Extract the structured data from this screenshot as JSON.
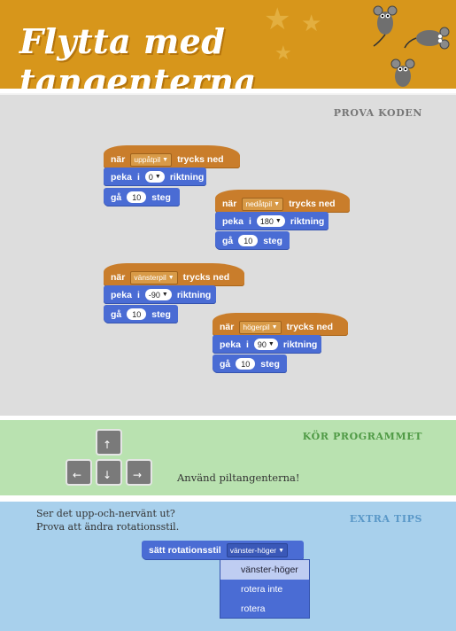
{
  "header": {
    "title": "Flytta med tangenterna"
  },
  "code_section": {
    "label": "PROVA KODEN",
    "scripts": [
      {
        "hat": {
          "when": "när",
          "key": "uppåtpil",
          "trigger": "trycks ned"
        },
        "point": {
          "label": "peka",
          "in": "i",
          "value": "0",
          "dir": "riktning"
        },
        "move": {
          "label": "gå",
          "value": "10",
          "unit": "steg"
        }
      },
      {
        "hat": {
          "when": "när",
          "key": "nedåtpil",
          "trigger": "trycks ned"
        },
        "point": {
          "label": "peka",
          "in": "i",
          "value": "180",
          "dir": "riktning"
        },
        "move": {
          "label": "gå",
          "value": "10",
          "unit": "steg"
        }
      },
      {
        "hat": {
          "when": "när",
          "key": "vänsterpil",
          "trigger": "trycks ned"
        },
        "point": {
          "label": "peka",
          "in": "i",
          "value": "-90",
          "dir": "riktning"
        },
        "move": {
          "label": "gå",
          "value": "10",
          "unit": "steg"
        }
      },
      {
        "hat": {
          "when": "när",
          "key": "högerpil",
          "trigger": "trycks ned"
        },
        "point": {
          "label": "peka",
          "in": "i",
          "value": "90",
          "dir": "riktning"
        },
        "move": {
          "label": "gå",
          "value": "10",
          "unit": "steg"
        }
      }
    ]
  },
  "run_section": {
    "label": "KÖR PROGRAMMET",
    "keys": {
      "up": "↑",
      "left": "←",
      "down": "↓",
      "right": "→"
    },
    "hint": "Använd piltangenterna!"
  },
  "tips_section": {
    "label": "EXTRA TIPS",
    "line1": "Ser det upp-och-nervänt ut?",
    "line2": "Prova att ändra rotationsstil.",
    "block_label": "sätt rotationsstil",
    "block_value": "vänster-höger",
    "menu": [
      "vänster-höger",
      "rotera inte",
      "rotera"
    ]
  },
  "colors": {
    "header": "#d7961b",
    "events": "#c97d2b",
    "motion": "#4a6cd4",
    "run_bg": "#b9e2b0",
    "tips_bg": "#a8d0ec"
  }
}
